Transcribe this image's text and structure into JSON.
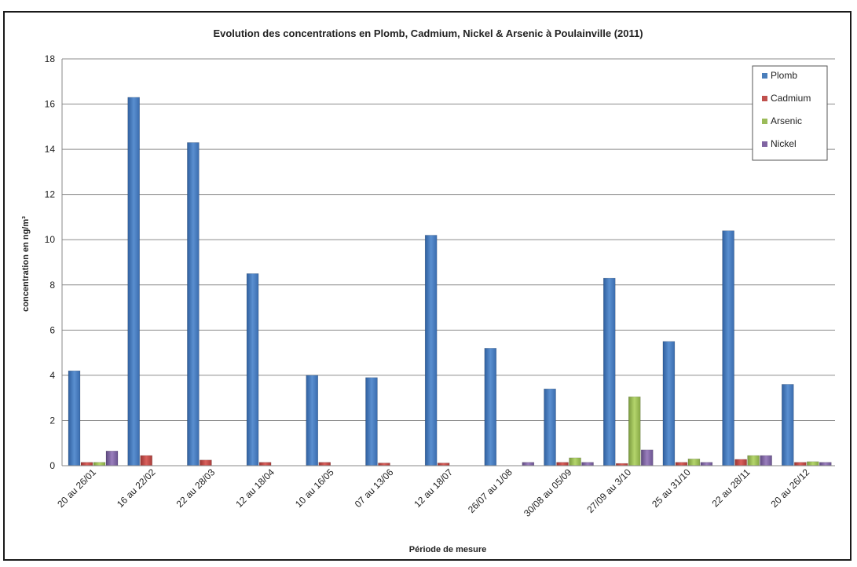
{
  "chart_data": {
    "type": "bar",
    "title": "Evolution des concentrations en Plomb, Cadmium, Nickel &  Arsenic à Poulainville (2011)",
    "xlabel": "Période de mesure",
    "ylabel": "concentration en ng/m³",
    "ylim": [
      0,
      18
    ],
    "yticks": [
      0,
      2,
      4,
      6,
      8,
      10,
      12,
      14,
      16,
      18
    ],
    "grid": true,
    "legend_position": "top-right",
    "categories": [
      "20 au 26/01",
      "16 au 22/02",
      "22 au 28/03",
      "12 au 18/04",
      "10 au 16/05",
      "07 au 13/06",
      "12 au 18/07",
      "26/07 au 1/08",
      "30/08 au 05/09",
      "27/09 au 3/10",
      "25 au 31/10",
      "22 au 28/11",
      "20 au 26/12"
    ],
    "series": [
      {
        "name": "Plomb",
        "color": "#4a7ebb",
        "values": [
          4.2,
          16.3,
          14.3,
          8.5,
          4.0,
          3.9,
          10.2,
          5.2,
          3.4,
          8.3,
          5.5,
          10.4,
          3.6
        ]
      },
      {
        "name": "Cadmium",
        "color": "#c0504d",
        "values": [
          0.15,
          0.45,
          0.25,
          0.15,
          0.15,
          0.12,
          0.12,
          0.0,
          0.15,
          0.1,
          0.15,
          0.28,
          0.15
        ]
      },
      {
        "name": "Arsenic",
        "color": "#9bbb59",
        "values": [
          0.15,
          0.0,
          0.0,
          0.0,
          0.0,
          0.0,
          0.0,
          0.0,
          0.35,
          3.05,
          0.3,
          0.45,
          0.18
        ]
      },
      {
        "name": "Nickel",
        "color": "#8064a2",
        "values": [
          0.65,
          0.0,
          0.0,
          0.0,
          0.0,
          0.0,
          0.0,
          0.15,
          0.15,
          0.7,
          0.15,
          0.45,
          0.15
        ]
      }
    ]
  }
}
